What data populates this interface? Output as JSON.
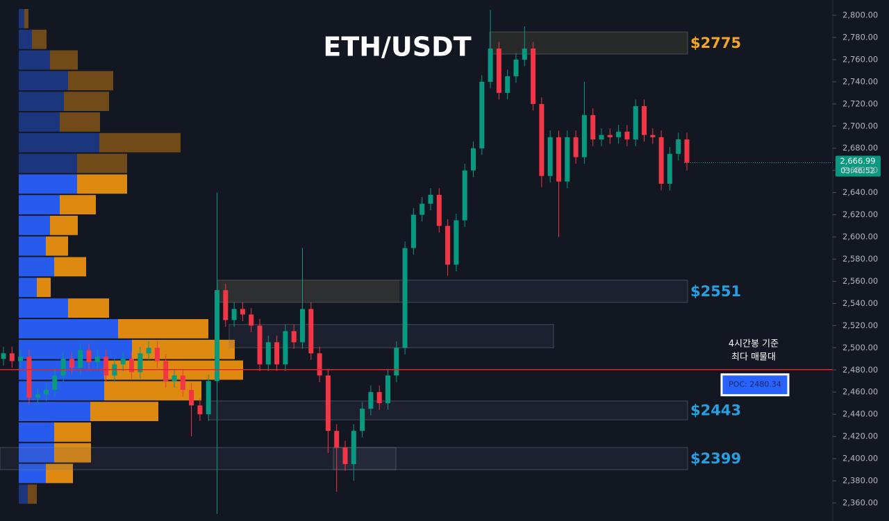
{
  "chart_data": {
    "type": "candlestick",
    "title": "ETH/USDT",
    "up_color": "#089981",
    "down_color": "#f23645",
    "open": [
      2490,
      2495,
      2488,
      2492,
      2455,
      2458,
      2462,
      2475,
      2490,
      2482,
      2498,
      2487,
      2492,
      2475,
      2485,
      2490,
      2478,
      2495,
      2500,
      2488,
      2470,
      2475,
      2462,
      2448,
      2440,
      2470,
      2552,
      2525,
      2535,
      2530,
      2520,
      2485,
      2505,
      2485,
      2515,
      2505,
      2535,
      2495,
      2475,
      2425,
      2410,
      2395,
      2425,
      2445,
      2460,
      2450,
      2475,
      2500,
      2590,
      2620,
      2630,
      2638,
      2610,
      2575,
      2615,
      2660,
      2680,
      2740,
      2770,
      2730,
      2745,
      2760,
      2770,
      2720,
      2655,
      2690,
      2650,
      2690,
      2672,
      2710,
      2688,
      2692,
      2690,
      2695,
      2688,
      2718,
      2692,
      2690,
      2648,
      2675,
      2688
    ],
    "high": [
      2501,
      2501,
      2498,
      2498,
      2464,
      2468,
      2481,
      2496,
      2496,
      2504,
      2504,
      2498,
      2498,
      2491,
      2496,
      2496,
      2501,
      2506,
      2506,
      2494,
      2481,
      2481,
      2468,
      2454,
      2476,
      2640,
      2558,
      2541,
      2541,
      2536,
      2526,
      2511,
      2511,
      2521,
      2521,
      2590,
      2541,
      2501,
      2481,
      2431,
      2416,
      2431,
      2451,
      2466,
      2466,
      2481,
      2506,
      2596,
      2626,
      2636,
      2644,
      2644,
      2616,
      2621,
      2666,
      2686,
      2746,
      2805,
      2776,
      2751,
      2766,
      2790,
      2776,
      2726,
      2696,
      2696,
      2696,
      2696,
      2740,
      2716,
      2698,
      2698,
      2701,
      2701,
      2724,
      2724,
      2698,
      2696,
      2681,
      2694,
      2694
    ],
    "low": [
      2484,
      2482,
      2482,
      2449,
      2449,
      2452,
      2456,
      2469,
      2476,
      2476,
      2481,
      2481,
      2469,
      2469,
      2479,
      2472,
      2472,
      2489,
      2482,
      2464,
      2464,
      2456,
      2420,
      2434,
      2434,
      2350,
      2519,
      2519,
      2524,
      2514,
      2479,
      2479,
      2479,
      2479,
      2499,
      2499,
      2489,
      2469,
      2405,
      2370,
      2389,
      2380,
      2419,
      2439,
      2444,
      2444,
      2469,
      2494,
      2584,
      2614,
      2624,
      2604,
      2565,
      2569,
      2609,
      2654,
      2674,
      2734,
      2724,
      2724,
      2739,
      2754,
      2714,
      2645,
      2649,
      2600,
      2644,
      2666,
      2666,
      2682,
      2682,
      2684,
      2684,
      2682,
      2682,
      2686,
      2684,
      2642,
      2642,
      2669,
      2660
    ],
    "close": [
      2495,
      2488,
      2492,
      2455,
      2458,
      2462,
      2475,
      2490,
      2482,
      2498,
      2487,
      2492,
      2475,
      2485,
      2490,
      2478,
      2495,
      2500,
      2488,
      2470,
      2475,
      2462,
      2448,
      2440,
      2470,
      2552,
      2525,
      2535,
      2530,
      2520,
      2485,
      2505,
      2485,
      2515,
      2505,
      2535,
      2495,
      2475,
      2425,
      2410,
      2395,
      2425,
      2445,
      2460,
      2450,
      2475,
      2500,
      2590,
      2620,
      2630,
      2638,
      2610,
      2575,
      2615,
      2660,
      2680,
      2740,
      2770,
      2730,
      2745,
      2760,
      2770,
      2720,
      2655,
      2690,
      2650,
      2690,
      2672,
      2710,
      2688,
      2692,
      2690,
      2695,
      2688,
      2718,
      2692,
      2690,
      2648,
      2675,
      2688,
      2666.99
    ],
    "ylim": [
      2343.7,
      2813.8
    ],
    "yticks": [
      {
        "value": 2800,
        "label": "2,800.00"
      },
      {
        "value": 2780,
        "label": "2,780.00"
      },
      {
        "value": 2760,
        "label": "2,760.00"
      },
      {
        "value": 2740,
        "label": "2,740.00"
      },
      {
        "value": 2720,
        "label": "2,720.00"
      },
      {
        "value": 2700,
        "label": "2,700.00"
      },
      {
        "value": 2680,
        "label": "2,680.00"
      },
      {
        "value": 2660,
        "label": "2,660.00"
      },
      {
        "value": 2640,
        "label": "2,640.00"
      },
      {
        "value": 2620,
        "label": "2,620.00"
      },
      {
        "value": 2600,
        "label": "2,600.00"
      },
      {
        "value": 2580,
        "label": "2,580.00"
      },
      {
        "value": 2560,
        "label": "2,560.00"
      },
      {
        "value": 2540,
        "label": "2,540.00"
      },
      {
        "value": 2520,
        "label": "2,520.00"
      },
      {
        "value": 2500,
        "label": "2,500.00"
      },
      {
        "value": 2480,
        "label": "2,480.00"
      },
      {
        "value": 2460,
        "label": "2,460.00"
      },
      {
        "value": 2440,
        "label": "2,440.00"
      },
      {
        "value": 2420,
        "label": "2,420.00"
      },
      {
        "value": 2400,
        "label": "2,400.00"
      },
      {
        "value": 2380,
        "label": "2,380.00"
      },
      {
        "value": 2360,
        "label": "2,360.00"
      }
    ],
    "grid": false,
    "last_price": {
      "value": 2666.99,
      "label": "2,666.99"
    },
    "countdown": "03:46:52",
    "zones": [
      {
        "range": [
          2765,
          2785
        ],
        "label": "$2775",
        "color": "#f5a623"
      },
      {
        "range": [
          2541,
          2561
        ],
        "label": "$2551",
        "color": "#2a9fe0"
      },
      {
        "range": [
          2500,
          2521
        ]
      },
      {
        "range": [
          2435,
          2452
        ],
        "label": "$2443",
        "color": "#2a9fe0"
      },
      {
        "range": [
          2390,
          2410
        ],
        "label": "$2399",
        "color": "#2a9fe0"
      },
      {
        "range": [
          2390,
          2410
        ]
      }
    ],
    "poc": {
      "value": 2480.34,
      "label": "POC: 2480.34",
      "color": "#e0262b"
    },
    "annotation": [
      "4시간봉 기준",
      "최다 매물대"
    ],
    "volume_profile": {
      "buy_color": "#2962ff",
      "sell_color": "#f0940f",
      "buy": [
        8,
        19,
        45,
        71,
        65,
        59,
        116,
        84,
        84,
        59,
        45,
        39,
        51,
        26,
        71,
        143,
        163,
        123,
        123,
        103,
        51,
        51,
        39,
        13
      ],
      "sell": [
        6,
        21,
        40,
        65,
        65,
        58,
        117,
        72,
        72,
        52,
        40,
        32,
        46,
        20,
        59,
        130,
        148,
        200,
        140,
        98,
        53,
        53,
        39,
        13
      ]
    }
  }
}
